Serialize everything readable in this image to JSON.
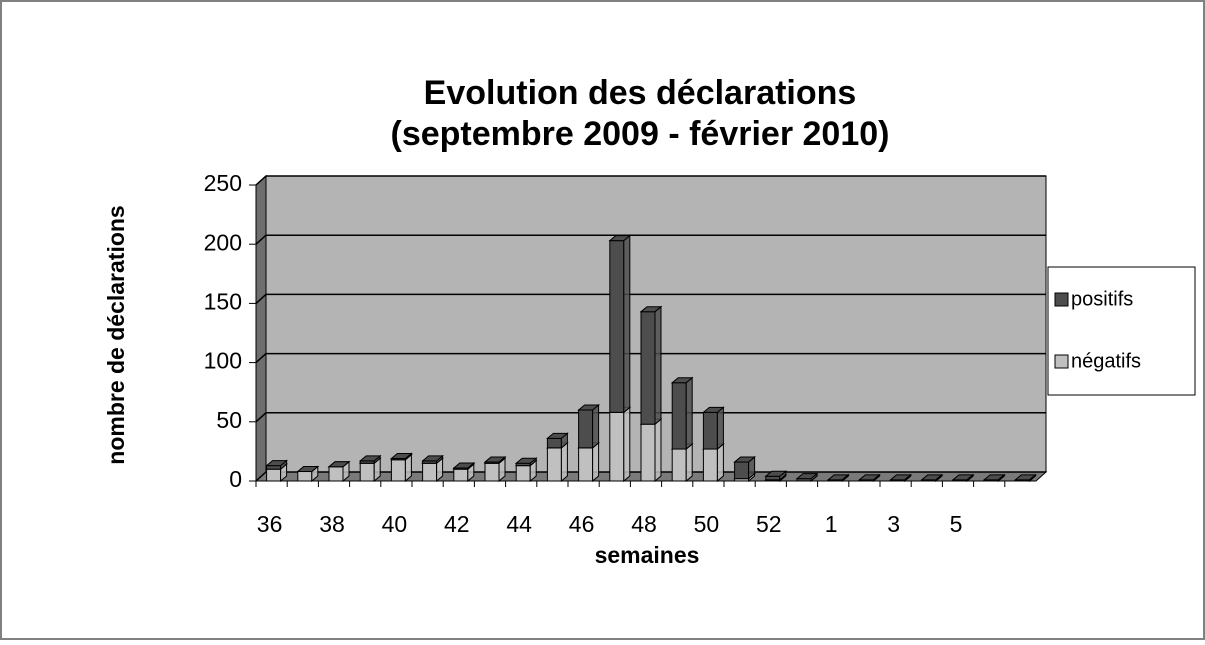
{
  "chart_data": {
    "type": "bar3d_stacked",
    "title": [
      "Evolution des déclarations",
      "(septembre 2009 - février 2010)"
    ],
    "y_label": "nombre de déclarations",
    "x_label": "semaines",
    "categories": [
      "36",
      null,
      "38",
      null,
      "40",
      null,
      "42",
      null,
      "44",
      null,
      "46",
      null,
      "48",
      null,
      "50",
      null,
      "52",
      null,
      "1",
      null,
      "3",
      null,
      "5",
      null,
      null
    ],
    "series": [
      {
        "name": "positifs",
        "color": "#4d4d4d",
        "values": [
          3,
          0,
          0,
          2,
          1,
          2,
          1,
          1,
          2,
          8,
          32,
          145,
          95,
          56,
          31,
          14,
          3,
          2,
          1,
          1,
          1,
          1,
          1,
          1,
          1
        ]
      },
      {
        "name": "négatifs",
        "color": "#c0c0c0",
        "values": [
          10,
          8,
          12,
          15,
          18,
          15,
          10,
          15,
          13,
          28,
          28,
          58,
          48,
          27,
          27,
          2,
          1,
          0,
          0,
          0,
          0,
          0,
          0,
          0,
          0
        ]
      }
    ],
    "ylim": [
      0,
      250
    ],
    "yticks": [
      0,
      50,
      100,
      150,
      200,
      250
    ],
    "grid": true,
    "legend": "right"
  }
}
